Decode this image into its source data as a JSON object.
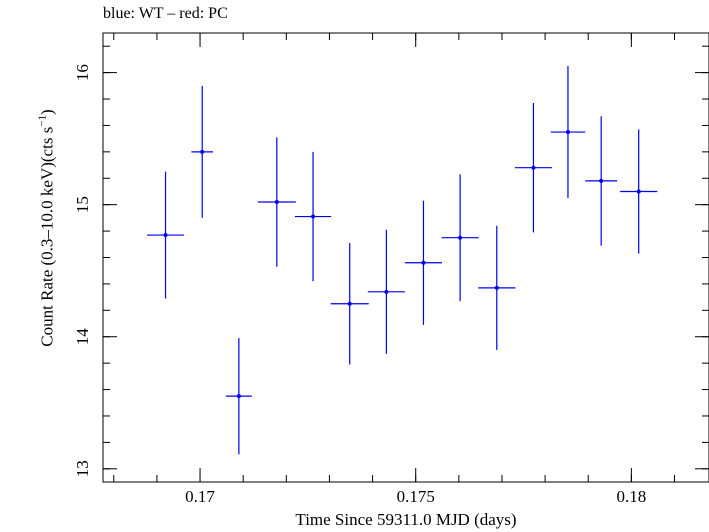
{
  "chart_data": {
    "type": "scatter",
    "title": "blue: WT – red: PC",
    "xlabel": "Time Since 59311.0 MJD (days)",
    "ylabel": {
      "prefix": "Count Rate (0.3–10.0 keV)(cts s",
      "superscript": "−1",
      "suffix": ")"
    },
    "xlim": [
      0.16775,
      0.1818
    ],
    "ylim": [
      12.9,
      16.3
    ],
    "x_ticks": [
      {
        "value": 0.17,
        "label": "0.17"
      },
      {
        "value": 0.175,
        "label": "0.175"
      },
      {
        "value": 0.18,
        "label": "0.18"
      }
    ],
    "y_ticks": [
      {
        "value": 13,
        "label": "13"
      },
      {
        "value": 14,
        "label": "14"
      },
      {
        "value": 15,
        "label": "15"
      },
      {
        "value": 16,
        "label": "16"
      }
    ],
    "x_minor_step": 0.001,
    "y_minor_step": 0.2,
    "series": [
      {
        "color": "#0000ee",
        "points": [
          {
            "x": 0.1692,
            "xerr": 0.00043,
            "y": 14.77,
            "yerr": 0.48
          },
          {
            "x": 0.17005,
            "xerr": 0.00025,
            "y": 15.4,
            "yerr": 0.5
          },
          {
            "x": 0.1709,
            "xerr": 0.0003,
            "y": 13.55,
            "yerr": 0.44
          },
          {
            "x": 0.17178,
            "xerr": 0.00044,
            "y": 15.02,
            "yerr": 0.49
          },
          {
            "x": 0.17262,
            "xerr": 0.00042,
            "y": 14.91,
            "yerr": 0.49
          },
          {
            "x": 0.17347,
            "xerr": 0.00044,
            "y": 14.25,
            "yerr": 0.46
          },
          {
            "x": 0.17432,
            "xerr": 0.00043,
            "y": 14.34,
            "yerr": 0.47
          },
          {
            "x": 0.17518,
            "xerr": 0.00043,
            "y": 14.56,
            "yerr": 0.47
          },
          {
            "x": 0.17603,
            "xerr": 0.00043,
            "y": 14.75,
            "yerr": 0.48
          },
          {
            "x": 0.17688,
            "xerr": 0.00043,
            "y": 14.37,
            "yerr": 0.47
          },
          {
            "x": 0.17773,
            "xerr": 0.00043,
            "y": 15.28,
            "yerr": 0.49
          },
          {
            "x": 0.17853,
            "xerr": 0.0004,
            "y": 15.55,
            "yerr": 0.5
          },
          {
            "x": 0.1793,
            "xerr": 0.00037,
            "y": 15.18,
            "yerr": 0.49
          },
          {
            "x": 0.18017,
            "xerr": 0.00043,
            "y": 15.1,
            "yerr": 0.47
          }
        ]
      }
    ]
  }
}
